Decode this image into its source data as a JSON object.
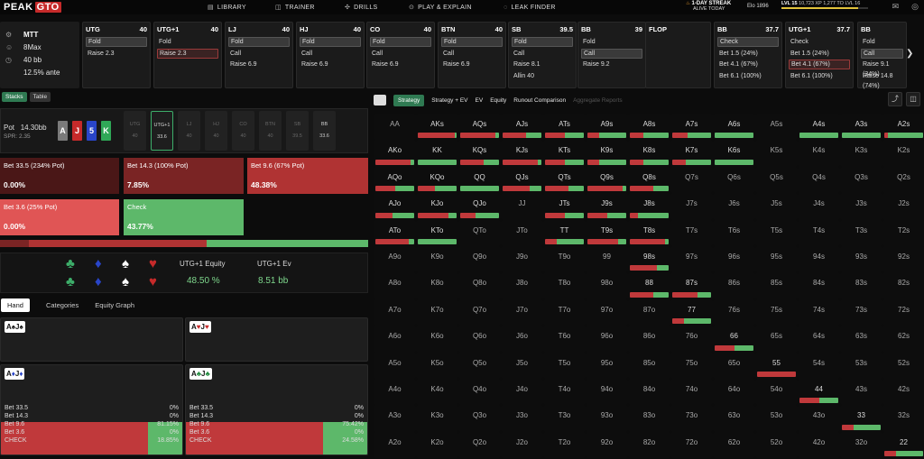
{
  "brand": {
    "peak": "PEAK",
    "gto": "GTO"
  },
  "nav": [
    {
      "label": "LIBRARY",
      "icon": "book-icon"
    },
    {
      "label": "TRAINER",
      "icon": "gamepad-icon"
    },
    {
      "label": "DRILLS",
      "icon": "target-icon"
    },
    {
      "label": "PLAY & EXPLAIN",
      "icon": "play-icon"
    },
    {
      "label": "LEAK FINDER",
      "icon": "leak-icon"
    }
  ],
  "streak": {
    "title": "1-DAY STREAK",
    "sub": "ALIVE TODAY"
  },
  "elo": "Elo 1896",
  "level": {
    "lvl": "LVL 15",
    "xp": "10,723 XP",
    "next": "1,277 TO LVL 16",
    "progress": 0.89
  },
  "info": {
    "game": "MTT",
    "table": "8Max",
    "stack": "40 bb",
    "ante": "12.5% ante"
  },
  "positions": [
    {
      "name": "UTG",
      "stack": "40",
      "actions": [
        "Fold",
        "Raise 2.3"
      ],
      "sel": 0,
      "selType": "grey"
    },
    {
      "name": "UTG+1",
      "stack": "40",
      "actions": [
        "Fold",
        "Raise 2.3"
      ],
      "sel": 1,
      "selType": "red"
    },
    {
      "name": "LJ",
      "stack": "40",
      "actions": [
        "Fold",
        "Call",
        "Raise 6.9"
      ],
      "sel": 0,
      "selType": "grey"
    },
    {
      "name": "HJ",
      "stack": "40",
      "actions": [
        "Fold",
        "Call",
        "Raise 6.9"
      ],
      "sel": 0,
      "selType": "grey"
    },
    {
      "name": "CO",
      "stack": "40",
      "actions": [
        "Fold",
        "Call",
        "Raise 6.9"
      ],
      "sel": 0,
      "selType": "grey"
    },
    {
      "name": "BTN",
      "stack": "40",
      "actions": [
        "Fold",
        "Call",
        "Raise 6.9"
      ],
      "sel": 0,
      "selType": "grey"
    },
    {
      "name": "SB",
      "stack": "39.5",
      "actions": [
        "Fold",
        "Call",
        "Raise 8.1",
        "Allin 40"
      ],
      "sel": 0,
      "selType": "grey"
    },
    {
      "name": "BB",
      "stack": "39",
      "actions": [
        "Fold",
        "Call",
        "Raise 9.2"
      ],
      "sel": 1,
      "selType": "grey"
    }
  ],
  "flop": {
    "label": "FLOP",
    "cards": [
      {
        "r": "A",
        "c": "#7a7a7a"
      },
      {
        "r": "J",
        "c": "#c62a2a"
      },
      {
        "r": "5",
        "c": "#2945c8"
      }
    ]
  },
  "postflop": [
    {
      "name": "BB",
      "stack": "37.7",
      "actions": [
        "Check",
        "Bet 1.5 (24%)",
        "Bet 4.1 (67%)",
        "Bet 6.1 (100%)"
      ],
      "sel": 0,
      "selType": "grey"
    },
    {
      "name": "UTG+1",
      "stack": "37.7",
      "actions": [
        "Check",
        "Bet 1.5 (24%)",
        "Bet 4.1 (67%)",
        "Bet 6.1 (100%)"
      ],
      "sel": 2,
      "selType": "red"
    },
    {
      "name": "BB",
      "stack": "",
      "actions": [
        "Fold",
        "Call",
        "Raise 9.1 (34%)",
        "Raise 14.8 (74%)"
      ],
      "sel": 1,
      "selType": "grey"
    }
  ],
  "subtabs": [
    "Stacks",
    "Table"
  ],
  "pot": {
    "label": "Pot",
    "value": "14.30bb",
    "spr": "SPR: 2.35",
    "board": [
      {
        "r": "A",
        "c": "#7a7a7a"
      },
      {
        "r": "J",
        "c": "#c62a2a"
      },
      {
        "r": "5",
        "c": "#2945c8"
      },
      {
        "r": "K",
        "c": "#2fa857"
      }
    ]
  },
  "players": [
    {
      "name": "UTG",
      "stack": "40"
    },
    {
      "name": "UTG+1",
      "stack": "33.6"
    },
    {
      "name": "LJ",
      "stack": "40"
    },
    {
      "name": "HJ",
      "stack": "40"
    },
    {
      "name": "CO",
      "stack": "40"
    },
    {
      "name": "BTN",
      "stack": "40"
    },
    {
      "name": "SB",
      "stack": "39.5"
    },
    {
      "name": "BB",
      "stack": "33.6"
    }
  ],
  "actions": [
    {
      "label": "Bet 33.5 (234% Pot)",
      "pct": "0.00%",
      "color": "#4a1717"
    },
    {
      "label": "Bet 14.3 (100% Pot)",
      "pct": "7.85%",
      "color": "#7a2424"
    },
    {
      "label": "Bet 9.6 (67% Pot)",
      "pct": "48.38%",
      "color": "#b03333"
    },
    {
      "label": "Bet 3.6 (25% Pot)",
      "pct": "0.00%",
      "color": "#e05555"
    },
    {
      "label": "Check",
      "pct": "43.77%",
      "color": "#5db86a"
    }
  ],
  "freq": [
    0.0,
    7.85,
    48.38,
    0.0,
    43.77
  ],
  "equity": {
    "label": "UTG+1 Equity",
    "value": "48.50 %",
    "evLabel": "UTG+1 Ev",
    "ev": "8.51 bb"
  },
  "handtabs": [
    "Hand",
    "Categories",
    "Equity Graph"
  ],
  "hands": [
    {
      "c1": "A",
      "s1": "♠",
      "c2": "J",
      "s2": "♠",
      "cls": ""
    },
    {
      "c1": "A",
      "s1": "♥",
      "c2": "J",
      "s2": "♥",
      "cls": "r"
    },
    {
      "c1": "A",
      "s1": "♦",
      "c2": "J",
      "s2": "♦",
      "cls": "b"
    },
    {
      "c1": "A",
      "s1": "♣",
      "c2": "J",
      "s2": "♣",
      "cls": "g"
    }
  ],
  "handstats": [
    [
      [
        "Bet 33.5",
        "0%"
      ],
      [
        "Bet 14.3",
        "0%"
      ],
      [
        "Bet 9.6",
        "81.15%"
      ],
      [
        "Bet 3.6",
        "0%"
      ],
      [
        "CHECK",
        "18.85%"
      ]
    ],
    [
      [
        "Bet 33.5",
        "0%"
      ],
      [
        "Bet 14.3",
        "0%"
      ],
      [
        "Bet 9.6",
        "75.42%"
      ],
      [
        "Bet 3.6",
        "0%"
      ],
      [
        "CHECK",
        "24.58%"
      ]
    ]
  ],
  "rtabs": [
    "Strategy",
    "Strategy + EV",
    "EV",
    "Equity",
    "Runout Comparison",
    "Aggregate Reports"
  ],
  "ranks": [
    "A",
    "K",
    "Q",
    "J",
    "T",
    "9",
    "8",
    "7",
    "6",
    "5",
    "4",
    "3",
    "2"
  ],
  "colors": {
    "bet": "#c0393b",
    "check": "#5db86a",
    "accent": "#2f7a52"
  }
}
